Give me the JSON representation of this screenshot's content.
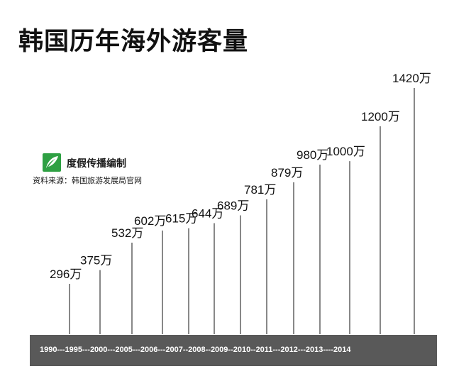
{
  "title": "韩国历年海外游客量",
  "brand": {
    "name": "度假传播编制",
    "logo_icon": "green-leaf-logo-icon"
  },
  "source": "资料来源：韩国旅游发展局官网",
  "colors": {
    "axis_band": "#595959",
    "logo_green": "#2ea043",
    "line": "#111111"
  },
  "chart_data": {
    "type": "bar",
    "title": "韩国历年海外游客量",
    "unit": "万",
    "categories": [
      "1990",
      "1995",
      "2000",
      "2005",
      "2006",
      "2007",
      "2008",
      "2009",
      "2010",
      "2011",
      "2012",
      "2013",
      "2014"
    ],
    "values": [
      296,
      375,
      532,
      602,
      615,
      644,
      689,
      781,
      879,
      980,
      1000,
      1200,
      1420
    ],
    "value_labels": [
      "296万",
      "375万",
      "532万",
      "602万",
      "615万",
      "644万",
      "689万",
      "781万",
      "879万",
      "980万",
      "1000万",
      "1200万",
      "1420万"
    ],
    "axis_labels": [
      "1990---",
      "1995---",
      "2000---",
      "2005---",
      "2006---",
      "2007--",
      "2008--",
      "2009--",
      "2010--",
      "2011---",
      "2012---",
      "2013----",
      "2014"
    ],
    "xlabel": "",
    "ylabel": "",
    "grid": false,
    "legend": "none"
  }
}
